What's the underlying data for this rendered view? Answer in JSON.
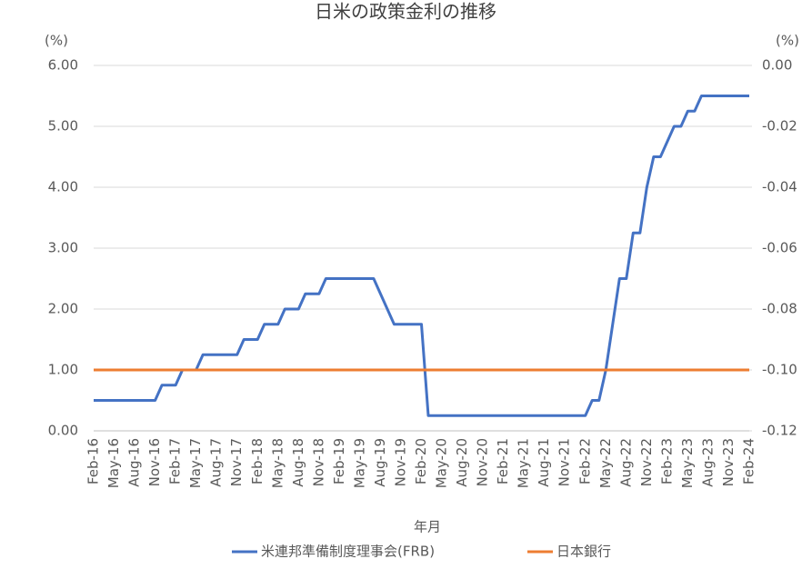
{
  "chart_data": {
    "type": "line",
    "title": "日米の政策金利の推移",
    "ylabel": "(%)",
    "y2label": "(%)",
    "xlabel": "年月",
    "categories": [
      "Feb-16",
      null,
      null,
      "May-16",
      null,
      null,
      "Aug-16",
      null,
      null,
      "Nov-16",
      null,
      null,
      "Feb-17",
      null,
      null,
      "May-17",
      null,
      null,
      "Aug-17",
      null,
      null,
      "Nov-17",
      null,
      null,
      "Feb-18",
      null,
      null,
      "May-18",
      null,
      null,
      "Aug-18",
      null,
      null,
      "Nov-18",
      null,
      null,
      "Feb-19",
      null,
      null,
      "May-19",
      null,
      null,
      "Aug-19",
      null,
      null,
      "Nov-19",
      null,
      null,
      "Feb-20",
      null,
      null,
      "May-20",
      null,
      null,
      "Aug-20",
      null,
      null,
      "Nov-20",
      null,
      null,
      "Feb-21",
      null,
      null,
      "May-21",
      null,
      null,
      "Aug-21",
      null,
      null,
      "Nov-21",
      null,
      null,
      "Feb-22",
      null,
      null,
      "May-22",
      null,
      null,
      "Aug-22",
      null,
      null,
      "Nov-22",
      null,
      null,
      "Feb-23",
      null,
      null,
      "May-23",
      null,
      null,
      "Aug-23",
      null,
      null,
      "Nov-23",
      null,
      null,
      "Feb-24"
    ],
    "series": [
      {
        "name": "米連邦準備制度理事会(FRB)",
        "color": "#4472c4",
        "axis": "y",
        "values": [
          0.5,
          0.5,
          0.5,
          0.5,
          0.5,
          0.5,
          0.5,
          0.5,
          0.5,
          0.5,
          0.75,
          0.75,
          0.75,
          1.0,
          1.0,
          1.0,
          1.25,
          1.25,
          1.25,
          1.25,
          1.25,
          1.25,
          1.5,
          1.5,
          1.5,
          1.75,
          1.75,
          1.75,
          2.0,
          2.0,
          2.0,
          2.25,
          2.25,
          2.25,
          2.5,
          2.5,
          2.5,
          2.5,
          2.5,
          2.5,
          2.5,
          2.5,
          2.25,
          2.0,
          1.75,
          1.75,
          1.75,
          1.75,
          1.75,
          0.25,
          0.25,
          0.25,
          0.25,
          0.25,
          0.25,
          0.25,
          0.25,
          0.25,
          0.25,
          0.25,
          0.25,
          0.25,
          0.25,
          0.25,
          0.25,
          0.25,
          0.25,
          0.25,
          0.25,
          0.25,
          0.25,
          0.25,
          0.25,
          0.5,
          0.5,
          1.0,
          1.75,
          2.5,
          2.5,
          3.25,
          3.25,
          4.0,
          4.5,
          4.5,
          4.75,
          5.0,
          5.0,
          5.25,
          5.25,
          5.5,
          5.5,
          5.5,
          5.5,
          5.5,
          5.5,
          5.5,
          5.5
        ]
      },
      {
        "name": "日本銀行",
        "color": "#ed7d31",
        "axis": "y2",
        "values": [
          -0.1,
          -0.1,
          -0.1,
          -0.1,
          -0.1,
          -0.1,
          -0.1,
          -0.1,
          -0.1,
          -0.1,
          -0.1,
          -0.1,
          -0.1,
          -0.1,
          -0.1,
          -0.1,
          -0.1,
          -0.1,
          -0.1,
          -0.1,
          -0.1,
          -0.1,
          -0.1,
          -0.1,
          -0.1,
          -0.1,
          -0.1,
          -0.1,
          -0.1,
          -0.1,
          -0.1,
          -0.1,
          -0.1,
          -0.1,
          -0.1,
          -0.1,
          -0.1,
          -0.1,
          -0.1,
          -0.1,
          -0.1,
          -0.1,
          -0.1,
          -0.1,
          -0.1,
          -0.1,
          -0.1,
          -0.1,
          -0.1,
          -0.1,
          -0.1,
          -0.1,
          -0.1,
          -0.1,
          -0.1,
          -0.1,
          -0.1,
          -0.1,
          -0.1,
          -0.1,
          -0.1,
          -0.1,
          -0.1,
          -0.1,
          -0.1,
          -0.1,
          -0.1,
          -0.1,
          -0.1,
          -0.1,
          -0.1,
          -0.1,
          -0.1,
          -0.1,
          -0.1,
          -0.1,
          -0.1,
          -0.1,
          -0.1,
          -0.1,
          -0.1,
          -0.1,
          -0.1,
          -0.1,
          -0.1,
          -0.1,
          -0.1,
          -0.1,
          -0.1,
          -0.1,
          -0.1,
          -0.1,
          -0.1,
          -0.1,
          -0.1,
          -0.1,
          -0.1
        ]
      }
    ],
    "ylim": [
      0,
      6
    ],
    "yticks": [
      {
        "value": 0,
        "label": "0.00"
      },
      {
        "value": 1,
        "label": "1.00"
      },
      {
        "value": 2,
        "label": "2.00"
      },
      {
        "value": 3,
        "label": "3.00"
      },
      {
        "value": 4,
        "label": "4.00"
      },
      {
        "value": 5,
        "label": "5.00"
      },
      {
        "value": 6,
        "label": "6.00"
      }
    ],
    "y2lim": [
      -0.12,
      0
    ],
    "y2ticks": [
      {
        "value": -0.12,
        "label": "-0.12"
      },
      {
        "value": -0.1,
        "label": "-0.10"
      },
      {
        "value": -0.08,
        "label": "-0.08"
      },
      {
        "value": -0.06,
        "label": "-0.06"
      },
      {
        "value": -0.04,
        "label": "-0.04"
      },
      {
        "value": -0.02,
        "label": "-0.02"
      },
      {
        "value": 0,
        "label": "0.00"
      }
    ],
    "grid": true,
    "legend": "bottom"
  }
}
